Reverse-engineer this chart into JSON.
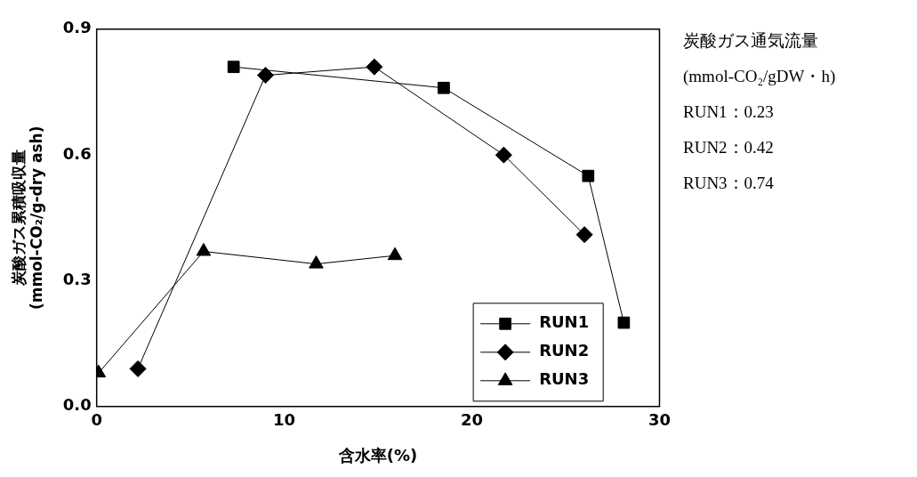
{
  "chart_data": {
    "type": "line",
    "xlabel": "含水率(%)",
    "ylabel": "炭酸ガス累積吸収量\n(mmol-CO₂/g-dry ash)",
    "xlim": [
      0,
      30
    ],
    "xticks": [
      0,
      10,
      20,
      30
    ],
    "ylim": [
      0,
      0.9
    ],
    "yticks": [
      {
        "value": 0,
        "label": "0.0"
      },
      {
        "value": 0.3,
        "label": "0.3"
      },
      {
        "value": 0.6,
        "label": "0.6"
      },
      {
        "value": 0.9,
        "label": "0.9"
      }
    ],
    "grid": false,
    "legend": "bottom right",
    "line_style": "solid",
    "series": [
      {
        "name": "RUN1",
        "color": "#000000",
        "marker": "square",
        "x": [
          7.3,
          18.5,
          26.2,
          28.1
        ],
        "values": [
          0.81,
          0.76,
          0.55,
          0.2
        ]
      },
      {
        "name": "RUN2",
        "color": "#000000",
        "marker": "diamond",
        "x": [
          2.2,
          9.0,
          14.8,
          21.7,
          26.0
        ],
        "values": [
          0.09,
          0.79,
          0.81,
          0.6,
          0.41
        ]
      },
      {
        "name": "RUN3",
        "color": "#000000",
        "marker": "triangle",
        "x": [
          0.1,
          5.7,
          11.7,
          15.9
        ],
        "values": [
          0.08,
          0.37,
          0.34,
          0.36
        ]
      }
    ],
    "annotations": [
      "炭酸ガス通気流量",
      "(mmol-CO₂/gDW・h)",
      "RUN1：0.23",
      "RUN2：0.42",
      "RUN3：0.74"
    ]
  }
}
